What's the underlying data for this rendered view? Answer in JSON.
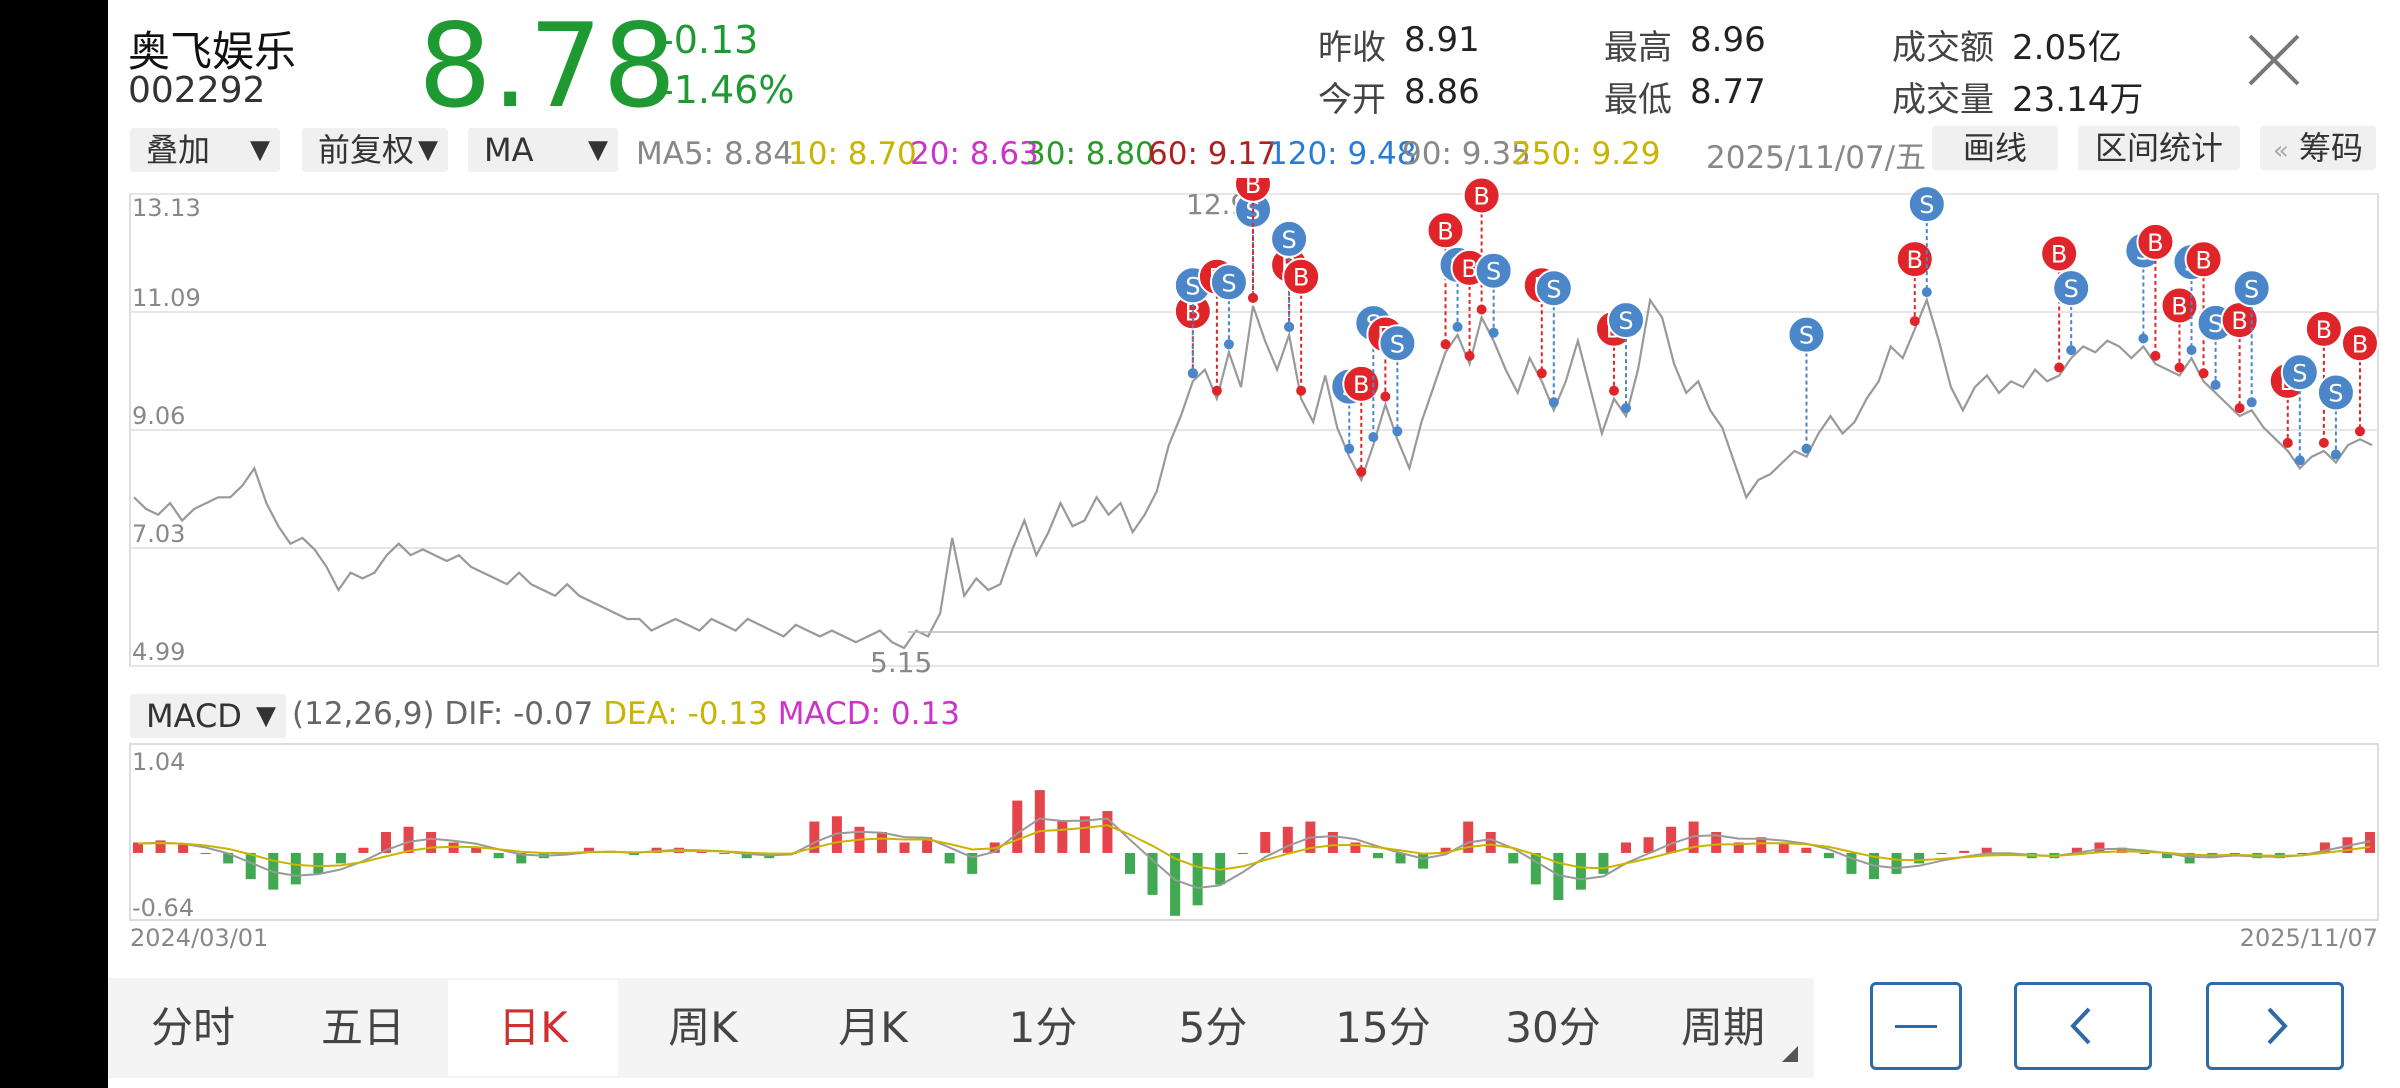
{
  "stock": {
    "name": "奥飞娱乐",
    "code": "002292",
    "price": "8.78",
    "change": "-0.13",
    "change_pct": "-1.46%"
  },
  "stats": {
    "prev_close_label": "昨收",
    "prev_close": "8.91",
    "open_label": "今开",
    "open": "8.86",
    "high_label": "最高",
    "high": "8.96",
    "low_label": "最低",
    "low": "8.77",
    "turnover_label": "成交额",
    "turnover": "2.05亿",
    "volume_label": "成交量",
    "volume": "23.14万"
  },
  "toolbar": {
    "overlay": "叠加",
    "adjust": "前复权",
    "indicator": "MA",
    "ma_values": [
      {
        "label": "MA5: 8.84",
        "color": "#888888"
      },
      {
        "label": "10: 8.70",
        "color": "#c9b400"
      },
      {
        "label": "20: 8.63",
        "color": "#cc33cc"
      },
      {
        "label": "30: 8.80",
        "color": "#2a9a2a"
      },
      {
        "label": "60: 9.17",
        "color": "#b02020"
      },
      {
        "label": "120: 9.48",
        "color": "#2a7bd6"
      },
      {
        "label": "90: 9.35",
        "color": "#888888"
      },
      {
        "label": "250: 9.29",
        "color": "#c9b400"
      }
    ],
    "date": "2025/11/07/五",
    "draw_line": "画线",
    "interval_stats": "区间统计",
    "chips": "筹码",
    "chips_prefix": "«"
  },
  "chart_data": [
    {
      "type": "line",
      "name": "price-kline",
      "yticks": [
        "13.13",
        "11.09",
        "9.06",
        "7.03",
        "4.99"
      ],
      "ylim": [
        4.99,
        13.13
      ],
      "max_label": "12.97",
      "min_label": "5.15",
      "x_start": "2024/03/01",
      "x_end": "2025/11/07",
      "close": [
        7.9,
        7.7,
        7.6,
        7.8,
        7.5,
        7.7,
        7.8,
        7.9,
        7.9,
        8.1,
        8.4,
        7.8,
        7.4,
        7.1,
        7.2,
        7.0,
        6.7,
        6.3,
        6.6,
        6.5,
        6.6,
        6.9,
        7.1,
        6.9,
        7.0,
        6.9,
        6.8,
        6.9,
        6.7,
        6.6,
        6.5,
        6.4,
        6.6,
        6.4,
        6.3,
        6.2,
        6.4,
        6.2,
        6.1,
        6.0,
        5.9,
        5.8,
        5.8,
        5.6,
        5.7,
        5.8,
        5.7,
        5.6,
        5.8,
        5.7,
        5.6,
        5.8,
        5.7,
        5.6,
        5.5,
        5.7,
        5.6,
        5.5,
        5.6,
        5.5,
        5.4,
        5.5,
        5.6,
        5.4,
        5.3,
        5.6,
        5.5,
        5.9,
        7.2,
        6.2,
        6.5,
        6.3,
        6.4,
        7.0,
        7.5,
        6.9,
        7.3,
        7.8,
        7.4,
        7.5,
        7.9,
        7.6,
        7.8,
        7.3,
        7.6,
        8.0,
        8.8,
        9.3,
        9.9,
        10.1,
        9.6,
        10.4,
        9.8,
        11.2,
        10.6,
        10.1,
        10.7,
        9.6,
        9.2,
        10.0,
        9.1,
        8.6,
        8.2,
        8.8,
        9.5,
        8.9,
        8.4,
        9.2,
        9.8,
        10.4,
        10.7,
        10.2,
        11.0,
        10.6,
        10.1,
        9.7,
        10.3,
        9.9,
        9.4,
        9.9,
        10.6,
        9.8,
        9.0,
        9.6,
        9.3,
        10.1,
        11.3,
        11.0,
        10.2,
        9.7,
        9.9,
        9.4,
        9.1,
        8.5,
        7.9,
        8.2,
        8.3,
        8.5,
        8.7,
        8.6,
        9.0,
        9.3,
        9.0,
        9.2,
        9.6,
        9.9,
        10.5,
        10.3,
        10.8,
        11.3,
        10.6,
        9.8,
        9.4,
        9.8,
        10.0,
        9.7,
        9.9,
        9.8,
        10.1,
        9.9,
        10.0,
        10.3,
        10.5,
        10.4,
        10.6,
        10.5,
        10.3,
        10.5,
        10.2,
        10.1,
        10.0,
        10.3,
        9.9,
        9.7,
        9.5,
        9.3,
        9.4,
        9.1,
        8.9,
        8.7,
        8.4,
        8.6,
        8.7,
        8.5,
        8.8,
        8.9,
        8.8
      ],
      "x_axis": "",
      "y_axis": ""
    },
    {
      "type": "bar",
      "name": "macd",
      "params": "(12,26,9)",
      "dif_label": "DIF: -0.07",
      "dea_label": "DEA: -0.13",
      "macd_label": "MACD: 0.13",
      "indicator_label": "MACD",
      "yticks": [
        "1.04",
        "-0.64"
      ],
      "ylim": [
        -0.64,
        1.04
      ],
      "hist": [
        0.1,
        0.12,
        0.08,
        0.0,
        -0.1,
        -0.25,
        -0.35,
        -0.3,
        -0.2,
        -0.1,
        0.05,
        0.2,
        0.25,
        0.2,
        0.1,
        0.05,
        -0.05,
        -0.1,
        -0.05,
        0.0,
        0.05,
        0.02,
        -0.02,
        0.05,
        0.05,
        0.02,
        0.0,
        -0.05,
        -0.05,
        0.0,
        0.3,
        0.35,
        0.25,
        0.2,
        0.1,
        0.15,
        -0.1,
        -0.2,
        0.1,
        0.5,
        0.6,
        0.3,
        0.35,
        0.4,
        -0.2,
        -0.4,
        -0.6,
        -0.5,
        -0.3,
        0.0,
        0.2,
        0.25,
        0.3,
        0.2,
        0.1,
        -0.05,
        -0.1,
        -0.15,
        0.05,
        0.3,
        0.2,
        -0.1,
        -0.3,
        -0.45,
        -0.35,
        -0.2,
        0.1,
        0.15,
        0.25,
        0.3,
        0.2,
        0.1,
        0.15,
        0.1,
        0.05,
        -0.05,
        -0.2,
        -0.25,
        -0.2,
        -0.1,
        0.0,
        0.02,
        0.05,
        0.0,
        -0.05,
        -0.05,
        0.05,
        0.1,
        0.05,
        0.0,
        -0.05,
        -0.1,
        -0.05,
        0.0,
        -0.05,
        -0.05,
        0.0,
        0.1,
        0.15,
        0.2
      ]
    }
  ],
  "trade_markers": [
    {
      "i": 88,
      "t": "B"
    },
    {
      "i": 88,
      "t": "S"
    },
    {
      "i": 90,
      "t": "B"
    },
    {
      "i": 91,
      "t": "S"
    },
    {
      "i": 93,
      "t": "S"
    },
    {
      "i": 93,
      "t": "B"
    },
    {
      "i": 96,
      "t": "B"
    },
    {
      "i": 96,
      "t": "S"
    },
    {
      "i": 97,
      "t": "B"
    },
    {
      "i": 101,
      "t": "S"
    },
    {
      "i": 102,
      "t": "B"
    },
    {
      "i": 103,
      "t": "S"
    },
    {
      "i": 104,
      "t": "B"
    },
    {
      "i": 105,
      "t": "S"
    },
    {
      "i": 109,
      "t": "B"
    },
    {
      "i": 110,
      "t": "S"
    },
    {
      "i": 111,
      "t": "B"
    },
    {
      "i": 112,
      "t": "B"
    },
    {
      "i": 113,
      "t": "S"
    },
    {
      "i": 117,
      "t": "B"
    },
    {
      "i": 118,
      "t": "S"
    },
    {
      "i": 123,
      "t": "B"
    },
    {
      "i": 124,
      "t": "S"
    },
    {
      "i": 139,
      "t": "S"
    },
    {
      "i": 148,
      "t": "B"
    },
    {
      "i": 149,
      "t": "S"
    },
    {
      "i": 160,
      "t": "B"
    },
    {
      "i": 161,
      "t": "S"
    },
    {
      "i": 167,
      "t": "S"
    },
    {
      "i": 168,
      "t": "B"
    },
    {
      "i": 170,
      "t": "B"
    },
    {
      "i": 171,
      "t": "S"
    },
    {
      "i": 172,
      "t": "B"
    },
    {
      "i": 173,
      "t": "S"
    },
    {
      "i": 175,
      "t": "B"
    },
    {
      "i": 176,
      "t": "S"
    },
    {
      "i": 179,
      "t": "B"
    },
    {
      "i": 180,
      "t": "S"
    },
    {
      "i": 182,
      "t": "B"
    },
    {
      "i": 183,
      "t": "S"
    },
    {
      "i": 185,
      "t": "B"
    },
    {
      "i": 191,
      "t": "B"
    },
    {
      "i": 192,
      "t": "S"
    },
    {
      "i": 196,
      "t": "B"
    }
  ],
  "tabs": [
    "分时",
    "五日",
    "日K",
    "周K",
    "月K",
    "1分",
    "5分",
    "15分",
    "30分",
    "周期"
  ],
  "active_tab": "日K",
  "nav": {
    "minus": "—",
    "prev": "‹",
    "next": "›"
  },
  "colors": {
    "up": "#e0252a",
    "down": "#1f9a33",
    "buy": "#e0252a",
    "sell": "#4a86c8"
  }
}
